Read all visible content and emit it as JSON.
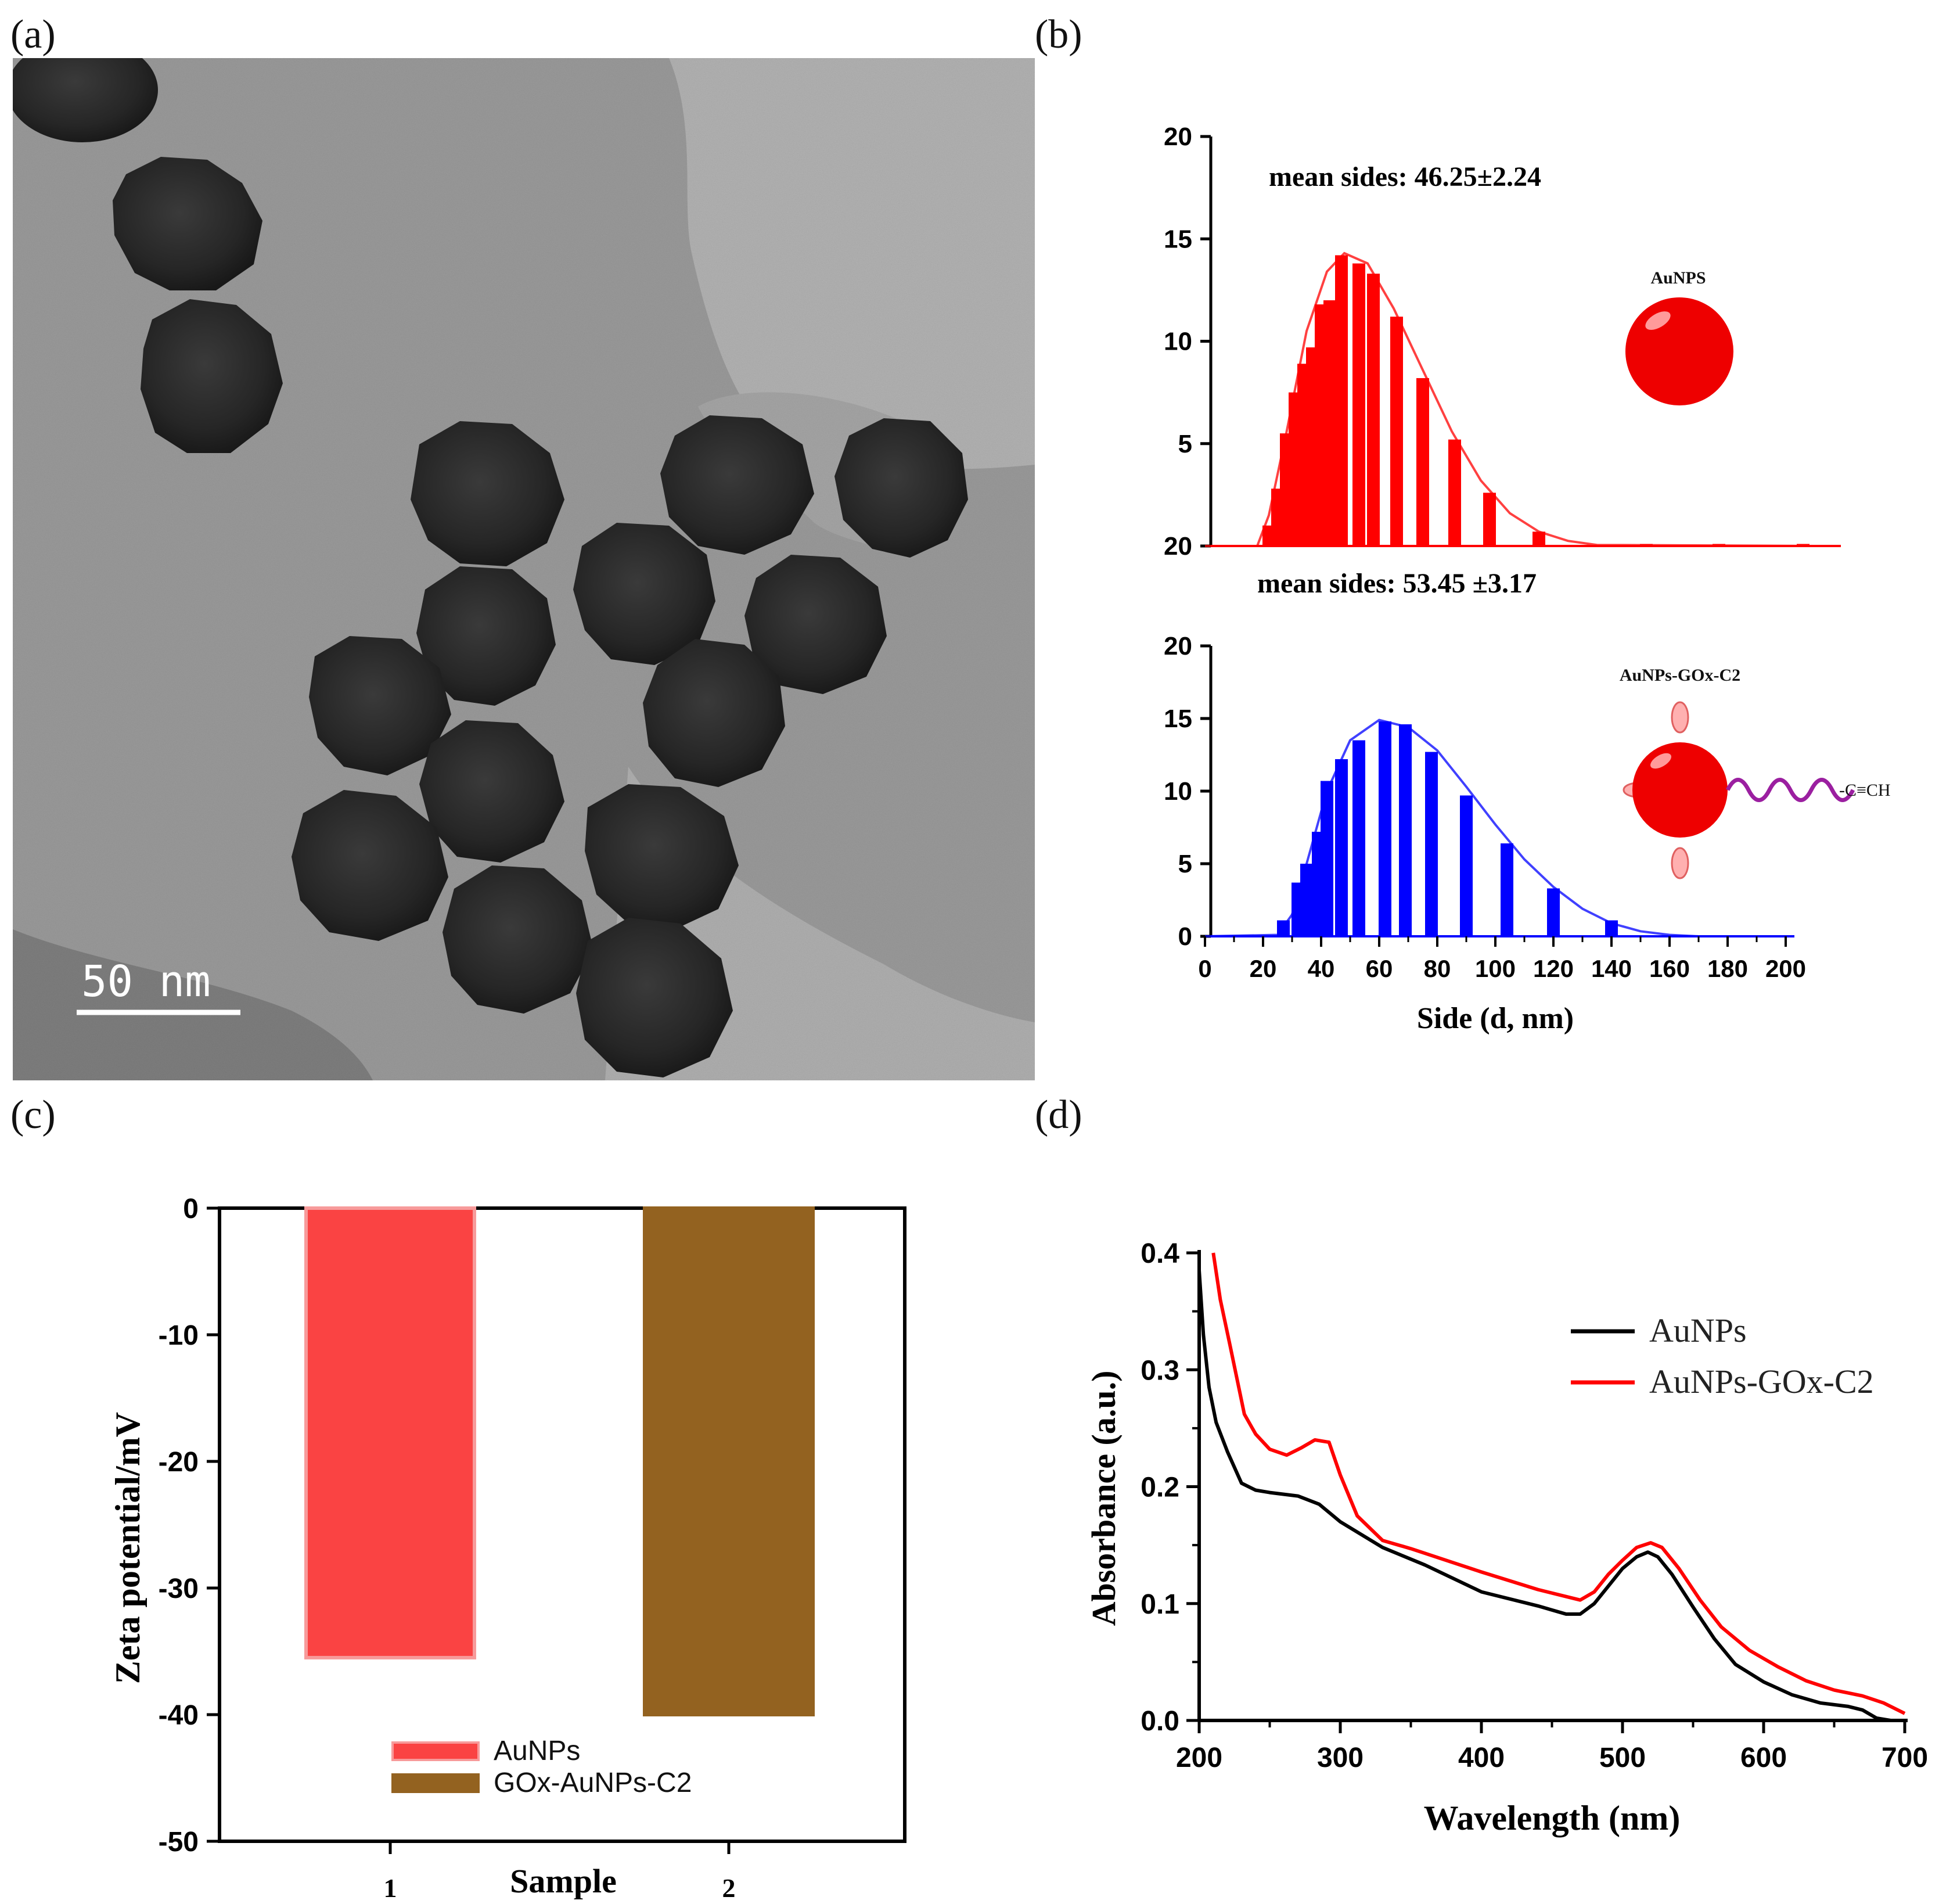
{
  "panels": {
    "a": {
      "letter": "(a)",
      "scale_bar_label": "50 nm"
    },
    "b": {
      "letter": "(b)"
    },
    "c": {
      "letter": "(c)"
    },
    "d": {
      "letter": "(d)"
    }
  },
  "chart_data": [
    {
      "panel": "b",
      "type": "bar",
      "xlabel": "Side (d, nm)",
      "xlim": [
        0,
        200
      ],
      "x_ticks": [
        0,
        20,
        40,
        60,
        80,
        100,
        120,
        140,
        160,
        180,
        200
      ],
      "subplots": [
        {
          "name": "AuNPS",
          "annotation": "mean sides: 46.25±2.24",
          "ylim": [
            0,
            20
          ],
          "y_ticks": [
            "20",
            "15",
            "10",
            "5"
          ],
          "bars": [
            {
              "x": 22,
              "y": 1.0
            },
            {
              "x": 25,
              "y": 2.8
            },
            {
              "x": 28,
              "y": 5.5
            },
            {
              "x": 31,
              "y": 7.5
            },
            {
              "x": 34,
              "y": 8.9
            },
            {
              "x": 37,
              "y": 9.7
            },
            {
              "x": 40,
              "y": 11.8
            },
            {
              "x": 43,
              "y": 12.0
            },
            {
              "x": 47,
              "y": 14.2
            },
            {
              "x": 53,
              "y": 13.8
            },
            {
              "x": 58,
              "y": 13.3
            },
            {
              "x": 66,
              "y": 11.2
            },
            {
              "x": 75,
              "y": 8.2
            },
            {
              "x": 86,
              "y": 5.2
            },
            {
              "x": 98,
              "y": 2.6
            },
            {
              "x": 115,
              "y": 0.7
            },
            {
              "x": 152,
              "y": 0.1
            },
            {
              "x": 177,
              "y": 0.1
            },
            {
              "x": 206,
              "y": 0.1
            }
          ],
          "fit_curve": [
            {
              "x": 0,
              "y": 0
            },
            {
              "x": 18,
              "y": 0
            },
            {
              "x": 22,
              "y": 1.5
            },
            {
              "x": 28,
              "y": 5.5
            },
            {
              "x": 35,
              "y": 10.5
            },
            {
              "x": 42,
              "y": 13.4
            },
            {
              "x": 48,
              "y": 14.3
            },
            {
              "x": 56,
              "y": 13.8
            },
            {
              "x": 65,
              "y": 11.6
            },
            {
              "x": 75,
              "y": 8.6
            },
            {
              "x": 85,
              "y": 5.6
            },
            {
              "x": 95,
              "y": 3.2
            },
            {
              "x": 105,
              "y": 1.6
            },
            {
              "x": 115,
              "y": 0.7
            },
            {
              "x": 125,
              "y": 0.25
            },
            {
              "x": 135,
              "y": 0.05
            },
            {
              "x": 210,
              "y": 0
            }
          ],
          "color": "#ff0000"
        },
        {
          "name": "AuNPs-GOx-C2",
          "annotation": "mean sides: 53.45 ±3.17",
          "ylim": [
            0,
            20
          ],
          "y_ticks": [
            "20",
            "15",
            "10",
            "5",
            "0"
          ],
          "bars": [
            {
              "x": 27,
              "y": 1.1
            },
            {
              "x": 32,
              "y": 3.7
            },
            {
              "x": 35,
              "y": 5.0
            },
            {
              "x": 39,
              "y": 7.2
            },
            {
              "x": 42,
              "y": 10.7
            },
            {
              "x": 47,
              "y": 12.2
            },
            {
              "x": 53,
              "y": 13.5
            },
            {
              "x": 62,
              "y": 14.8
            },
            {
              "x": 69,
              "y": 14.6
            },
            {
              "x": 78,
              "y": 12.7
            },
            {
              "x": 90,
              "y": 9.7
            },
            {
              "x": 104,
              "y": 6.4
            },
            {
              "x": 120,
              "y": 3.3
            },
            {
              "x": 140,
              "y": 1.1
            }
          ],
          "fit_curve": [
            {
              "x": 0,
              "y": 0
            },
            {
              "x": 25,
              "y": 0.1
            },
            {
              "x": 30,
              "y": 1.5
            },
            {
              "x": 35,
              "y": 5.0
            },
            {
              "x": 42,
              "y": 10.0
            },
            {
              "x": 50,
              "y": 13.5
            },
            {
              "x": 60,
              "y": 14.9
            },
            {
              "x": 70,
              "y": 14.4
            },
            {
              "x": 80,
              "y": 12.8
            },
            {
              "x": 90,
              "y": 10.3
            },
            {
              "x": 100,
              "y": 7.7
            },
            {
              "x": 110,
              "y": 5.3
            },
            {
              "x": 120,
              "y": 3.4
            },
            {
              "x": 130,
              "y": 1.9
            },
            {
              "x": 140,
              "y": 0.9
            },
            {
              "x": 150,
              "y": 0.35
            },
            {
              "x": 160,
              "y": 0.1
            },
            {
              "x": 170,
              "y": 0
            },
            {
              "x": 195,
              "y": 0
            }
          ],
          "color": "#0000ff",
          "schematic_label": "-C≡CH"
        }
      ]
    },
    {
      "panel": "c",
      "type": "bar",
      "xlabel": "Sample",
      "ylabel": "Zeta potential/mV",
      "ylim": [
        -50,
        0
      ],
      "y_ticks": [
        0,
        -10,
        -20,
        -30,
        -40,
        -50
      ],
      "categories": [
        "1",
        "2"
      ],
      "series": [
        {
          "name": "AuNPs",
          "value": -35.5,
          "color": "#fa4343"
        },
        {
          "name": "GOx-AuNPs-C2",
          "value": -40.0,
          "color": "#936220"
        }
      ]
    },
    {
      "panel": "d",
      "type": "line",
      "xlabel": "Wavelength (nm)",
      "ylabel": "Absorbance (a.u.)",
      "xlim": [
        200,
        700
      ],
      "ylim": [
        0.0,
        0.4
      ],
      "x_ticks": [
        200,
        300,
        400,
        500,
        600,
        700
      ],
      "y_ticks": [
        "0.0",
        "0.1",
        "0.2",
        "0.3",
        "0.4"
      ],
      "legend_position": "top-right",
      "series": [
        {
          "name": "AuNPs",
          "color": "#000000",
          "points": [
            [
              200,
              0.385
            ],
            [
              203,
              0.33
            ],
            [
              207,
              0.285
            ],
            [
              212,
              0.255
            ],
            [
              220,
              0.23
            ],
            [
              230,
              0.203
            ],
            [
              240,
              0.197
            ],
            [
              250,
              0.195
            ],
            [
              270,
              0.192
            ],
            [
              285,
              0.185
            ],
            [
              300,
              0.17
            ],
            [
              330,
              0.148
            ],
            [
              360,
              0.133
            ],
            [
              400,
              0.11
            ],
            [
              440,
              0.098
            ],
            [
              460,
              0.091
            ],
            [
              470,
              0.091
            ],
            [
              480,
              0.1
            ],
            [
              490,
              0.115
            ],
            [
              500,
              0.13
            ],
            [
              510,
              0.14
            ],
            [
              518,
              0.144
            ],
            [
              525,
              0.14
            ],
            [
              535,
              0.125
            ],
            [
              550,
              0.097
            ],
            [
              565,
              0.07
            ],
            [
              580,
              0.048
            ],
            [
              600,
              0.033
            ],
            [
              620,
              0.022
            ],
            [
              640,
              0.015
            ],
            [
              660,
              0.012
            ],
            [
              670,
              0.009
            ],
            [
              680,
              0.002
            ],
            [
              690,
              0.0
            ]
          ]
        },
        {
          "name": "AuNPs-GOx-C2",
          "color": "#ff0000",
          "points": [
            [
              210,
              0.4
            ],
            [
              215,
              0.36
            ],
            [
              222,
              0.32
            ],
            [
              232,
              0.262
            ],
            [
              240,
              0.245
            ],
            [
              250,
              0.232
            ],
            [
              262,
              0.227
            ],
            [
              272,
              0.233
            ],
            [
              282,
              0.24
            ],
            [
              292,
              0.238
            ],
            [
              300,
              0.21
            ],
            [
              312,
              0.175
            ],
            [
              330,
              0.154
            ],
            [
              350,
              0.147
            ],
            [
              380,
              0.135
            ],
            [
              400,
              0.127
            ],
            [
              440,
              0.112
            ],
            [
              460,
              0.106
            ],
            [
              470,
              0.103
            ],
            [
              480,
              0.11
            ],
            [
              490,
              0.125
            ],
            [
              500,
              0.137
            ],
            [
              510,
              0.148
            ],
            [
              520,
              0.152
            ],
            [
              528,
              0.148
            ],
            [
              540,
              0.13
            ],
            [
              555,
              0.103
            ],
            [
              570,
              0.08
            ],
            [
              590,
              0.06
            ],
            [
              610,
              0.046
            ],
            [
              630,
              0.034
            ],
            [
              650,
              0.026
            ],
            [
              670,
              0.021
            ],
            [
              685,
              0.015
            ],
            [
              700,
              0.006
            ]
          ]
        }
      ]
    }
  ]
}
